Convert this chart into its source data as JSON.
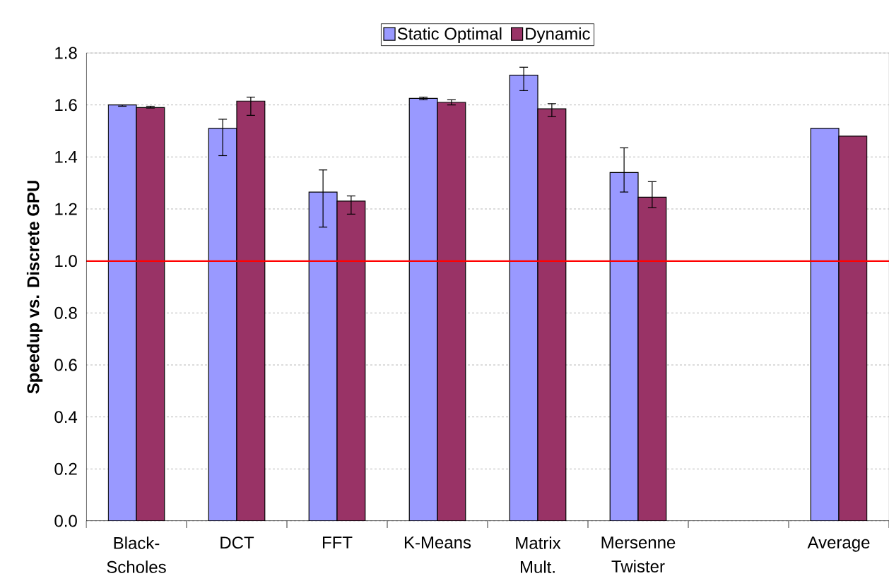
{
  "chart_data": {
    "type": "bar",
    "ylabel": "Speedup vs. Discrete GPU",
    "categories": [
      "Black-Scholes",
      "DCT",
      "FFT",
      "K-Means",
      "Matrix Mult.",
      "Mersenne Twister",
      null,
      "Average"
    ],
    "series": [
      {
        "name": "Static Optimal",
        "color": "#9999ff",
        "values": [
          1.6,
          1.51,
          1.265,
          1.625,
          1.715,
          1.34,
          null,
          1.51
        ],
        "errors": [
          [
            1.595,
            1.6
          ],
          [
            1.405,
            1.545
          ],
          [
            1.13,
            1.35
          ],
          [
            1.62,
            1.63
          ],
          [
            1.655,
            1.745
          ],
          [
            1.265,
            1.435
          ],
          null,
          null
        ]
      },
      {
        "name": "Dynamic",
        "color": "#993366",
        "values": [
          1.59,
          1.615,
          1.23,
          1.61,
          1.585,
          1.245,
          null,
          1.48
        ],
        "errors": [
          [
            1.588,
            1.595
          ],
          [
            1.56,
            1.63
          ],
          [
            1.18,
            1.25
          ],
          [
            1.6,
            1.62
          ],
          [
            1.555,
            1.605
          ],
          [
            1.205,
            1.305
          ],
          null,
          null
        ]
      }
    ],
    "ylim": [
      0,
      1.8
    ],
    "yticks": [
      {
        "value": 0,
        "label": "0.0"
      },
      {
        "value": 0.2,
        "label": "0.2"
      },
      {
        "value": 0.4,
        "label": "0.4"
      },
      {
        "value": 0.6,
        "label": "0.6"
      },
      {
        "value": 0.8,
        "label": "0.8"
      },
      {
        "value": 1.0,
        "label": "1.0"
      },
      {
        "value": 1.2,
        "label": "1.2"
      },
      {
        "value": 1.4,
        "label": "1.4"
      },
      {
        "value": 1.6,
        "label": "1.6"
      },
      {
        "value": 1.8,
        "label": "1.8"
      }
    ],
    "ref_lines": [
      {
        "axis": "y",
        "value": 1.0,
        "color": "#ff0000"
      }
    ],
    "grid": "y",
    "legend": "top"
  }
}
